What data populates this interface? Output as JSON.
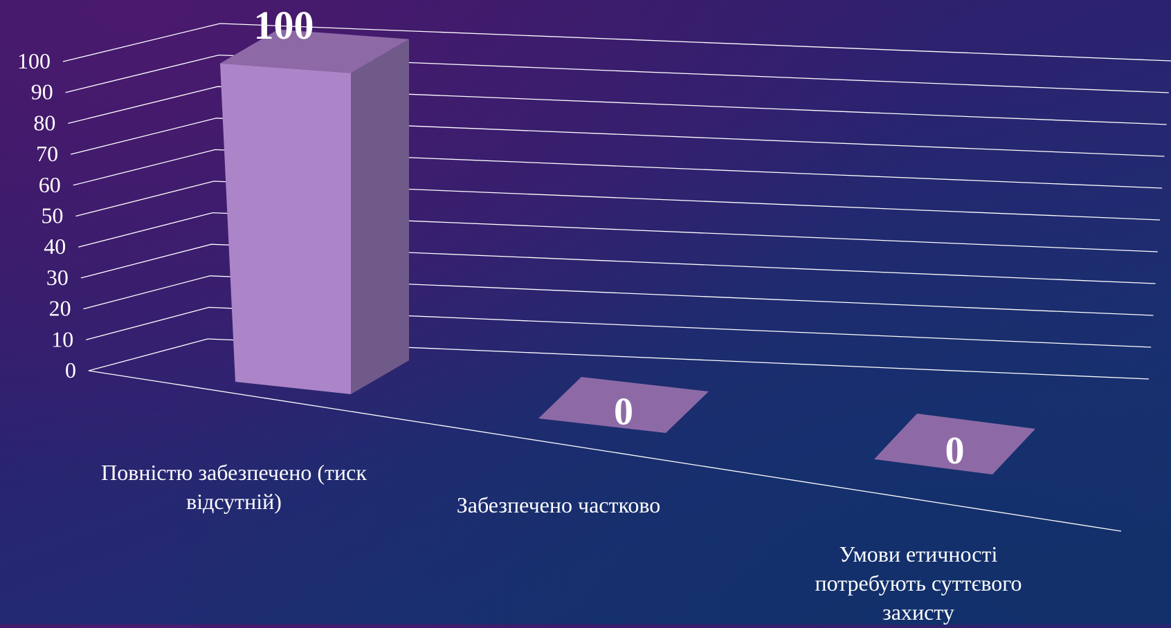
{
  "chart_data": {
    "type": "bar",
    "categories": [
      "Повністю забезпечено (тиск відсутній)",
      "Забезпечено частково",
      "Умови етичності потребують суттєвого захисту"
    ],
    "values": [
      100,
      0,
      0
    ],
    "data_labels": [
      "100",
      "0",
      "0"
    ],
    "ylim": [
      0,
      100
    ],
    "yticks": [
      "0",
      "10",
      "20",
      "30",
      "40",
      "50",
      "60",
      "70",
      "80",
      "90",
      "100"
    ],
    "grid": true,
    "style": "3d",
    "colors": {
      "bar_front": "#ab85c8",
      "bar_side": "#705a8a",
      "bar_top": "#8d6aa6",
      "grid": "#ffffff",
      "text": "#ffffff"
    }
  }
}
